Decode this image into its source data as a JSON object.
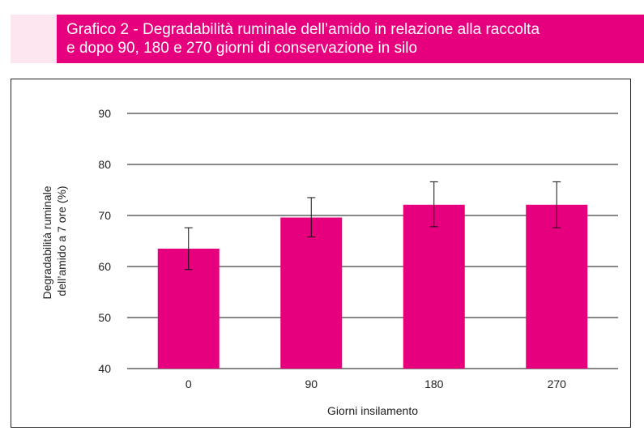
{
  "header": {
    "title_line1": "Grafico 2 - Degradabilità ruminale dell’amido in relazione alla raccolta",
    "title_line2": "e dopo 90, 180 e 270 giorni di conservazione in silo"
  },
  "chart_data": {
    "type": "bar",
    "categories": [
      "0",
      "90",
      "180",
      "270"
    ],
    "values": [
      63.5,
      69.6,
      72.1,
      72.1
    ],
    "error_low": [
      59.4,
      65.8,
      67.8,
      67.6
    ],
    "error_high": [
      67.6,
      73.5,
      76.6,
      76.6
    ],
    "xlabel": "Giorni insilamento",
    "ylabel_line1": "Degradabilità ruminale",
    "ylabel_line2": "dell’amido a 7 ore (%)",
    "ylim": [
      40,
      90
    ],
    "yticks": [
      40,
      50,
      60,
      70,
      80,
      90
    ],
    "grid": true,
    "bar_color": "#e6007e"
  }
}
